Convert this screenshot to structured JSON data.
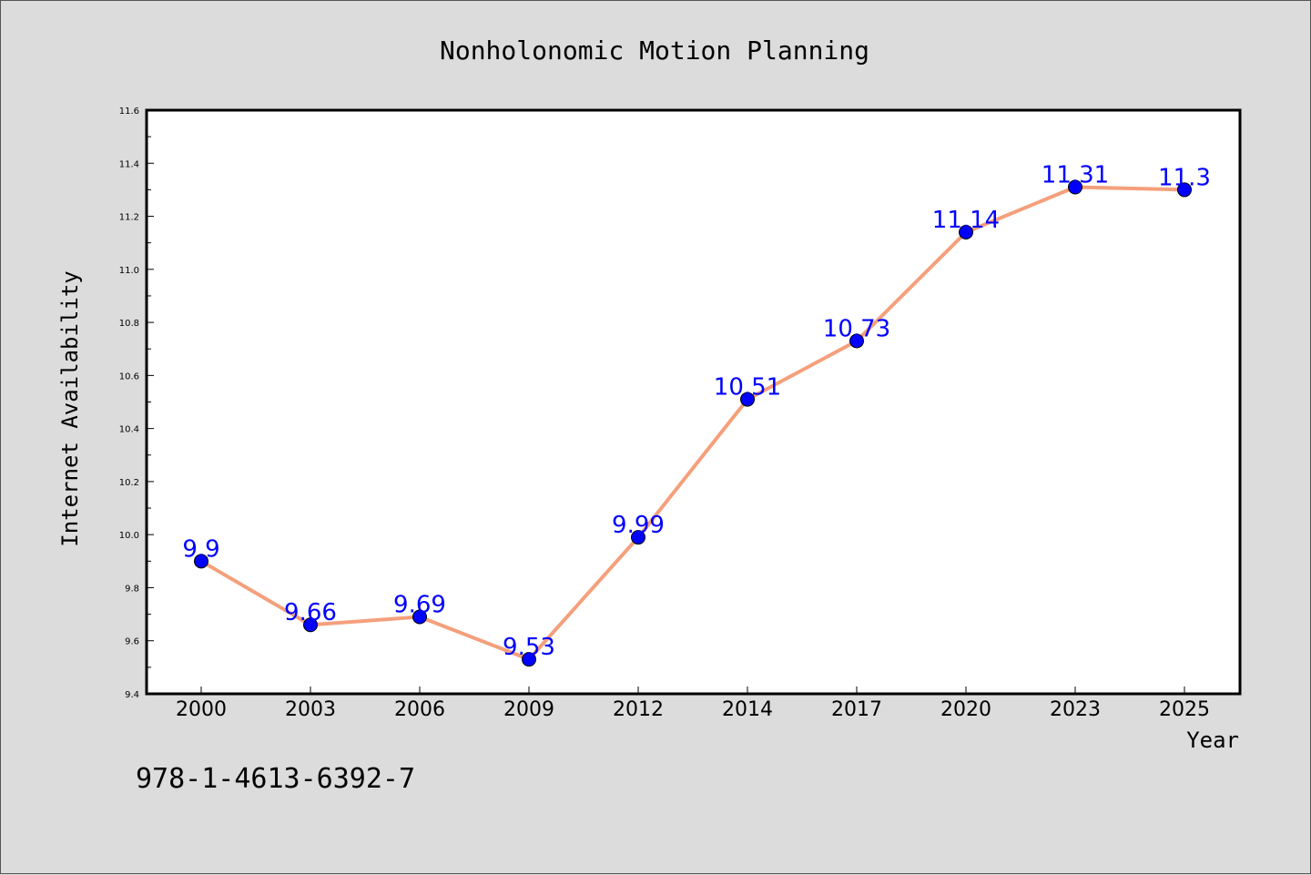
{
  "chart_data": {
    "type": "line",
    "title": "Nonholonomic Motion Planning",
    "xlabel": "Year",
    "ylabel": "Internet Availability",
    "categories": [
      "2000",
      "2003",
      "2006",
      "2009",
      "2012",
      "2014",
      "2017",
      "2020",
      "2023",
      "2025"
    ],
    "series": [
      {
        "values": [
          9.9,
          9.66,
          9.69,
          9.53,
          9.99,
          10.51,
          10.73,
          11.14,
          11.31,
          11.3
        ],
        "data_labels": [
          "9.9",
          "9.66",
          "9.69",
          "9.53",
          "9.99",
          "10.51",
          "10.73",
          "11.14",
          "11.31",
          "11.3"
        ]
      }
    ],
    "ylim": [
      9.4,
      11.6
    ],
    "yticks": [
      9.4,
      9.6,
      9.8,
      10.0,
      10.2,
      10.4,
      10.6,
      10.8,
      11.0,
      11.2,
      11.4,
      11.6
    ],
    "ytick_labels": [
      "9.4",
      "9.6",
      "9.8",
      "10.0",
      "10.2",
      "10.4",
      "10.6",
      "10.8",
      "11.0",
      "11.2",
      "11.4",
      "11.6"
    ],
    "grid": false,
    "legend": "none",
    "colors": {
      "line": "#f4a07c",
      "marker": "#0000ff",
      "data_label": "#0000ff",
      "plot_bg": "#ffffff",
      "figure_bg": "#dcdcdc"
    }
  },
  "footnote": "978-1-4613-6392-7"
}
